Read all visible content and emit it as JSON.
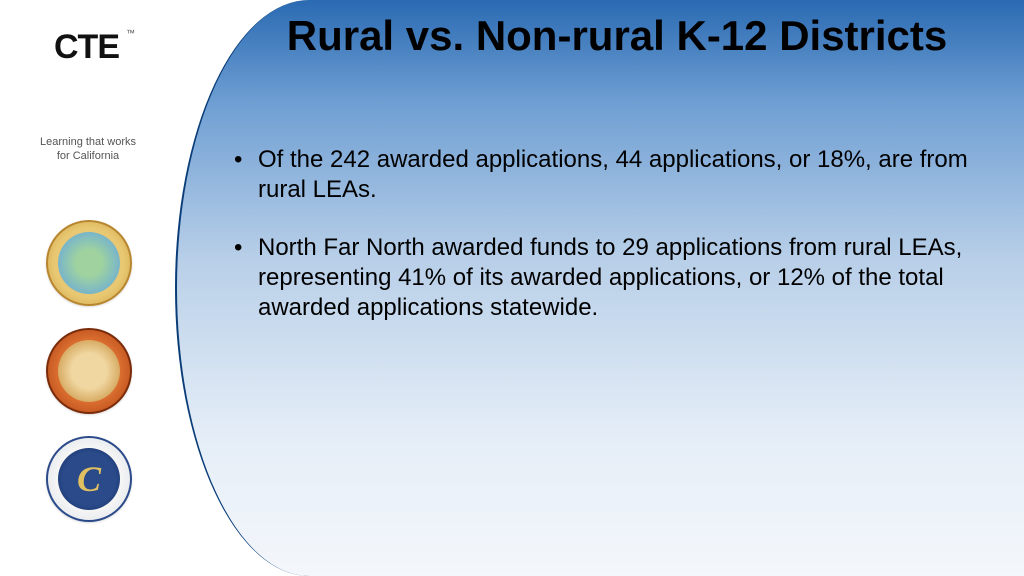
{
  "slide": {
    "title": "Rural vs. Non-rural K-12 Districts",
    "bullets": [
      "Of the 242 awarded applications, 44 applications, or 18%, are from rural LEAs.",
      "North Far North awarded funds to 29 applications from rural LEAs, representing 41% of its awarded applications, or 12% of the total awarded applications statewide."
    ],
    "background_gradient": {
      "top": "#2a6ab2",
      "bottom": "#f4f7fb"
    },
    "curve_border_color": "#0a3d78",
    "title_fontsize_pt": 32,
    "body_fontsize_pt": 18,
    "text_color": "#000000"
  },
  "logo": {
    "acronym": "CTE",
    "trademark": "™",
    "tagline_line1": "Learning that works",
    "tagline_line2": "for California",
    "arc_colors": [
      "#2aa6a0",
      "#e68a1f",
      "#111111"
    ]
  },
  "seals": [
    {
      "name": "California State Board of Education seal",
      "ring_color": "#c89b3f",
      "inner_color": "#6faed4"
    },
    {
      "name": "California Department of Education seal",
      "ring_color": "#a83e12",
      "inner_color": "#c7913e"
    },
    {
      "name": "California Community Colleges seal",
      "ring_color": "#2a4a8a",
      "inner_color": "#11275a",
      "letter": "C"
    }
  ]
}
